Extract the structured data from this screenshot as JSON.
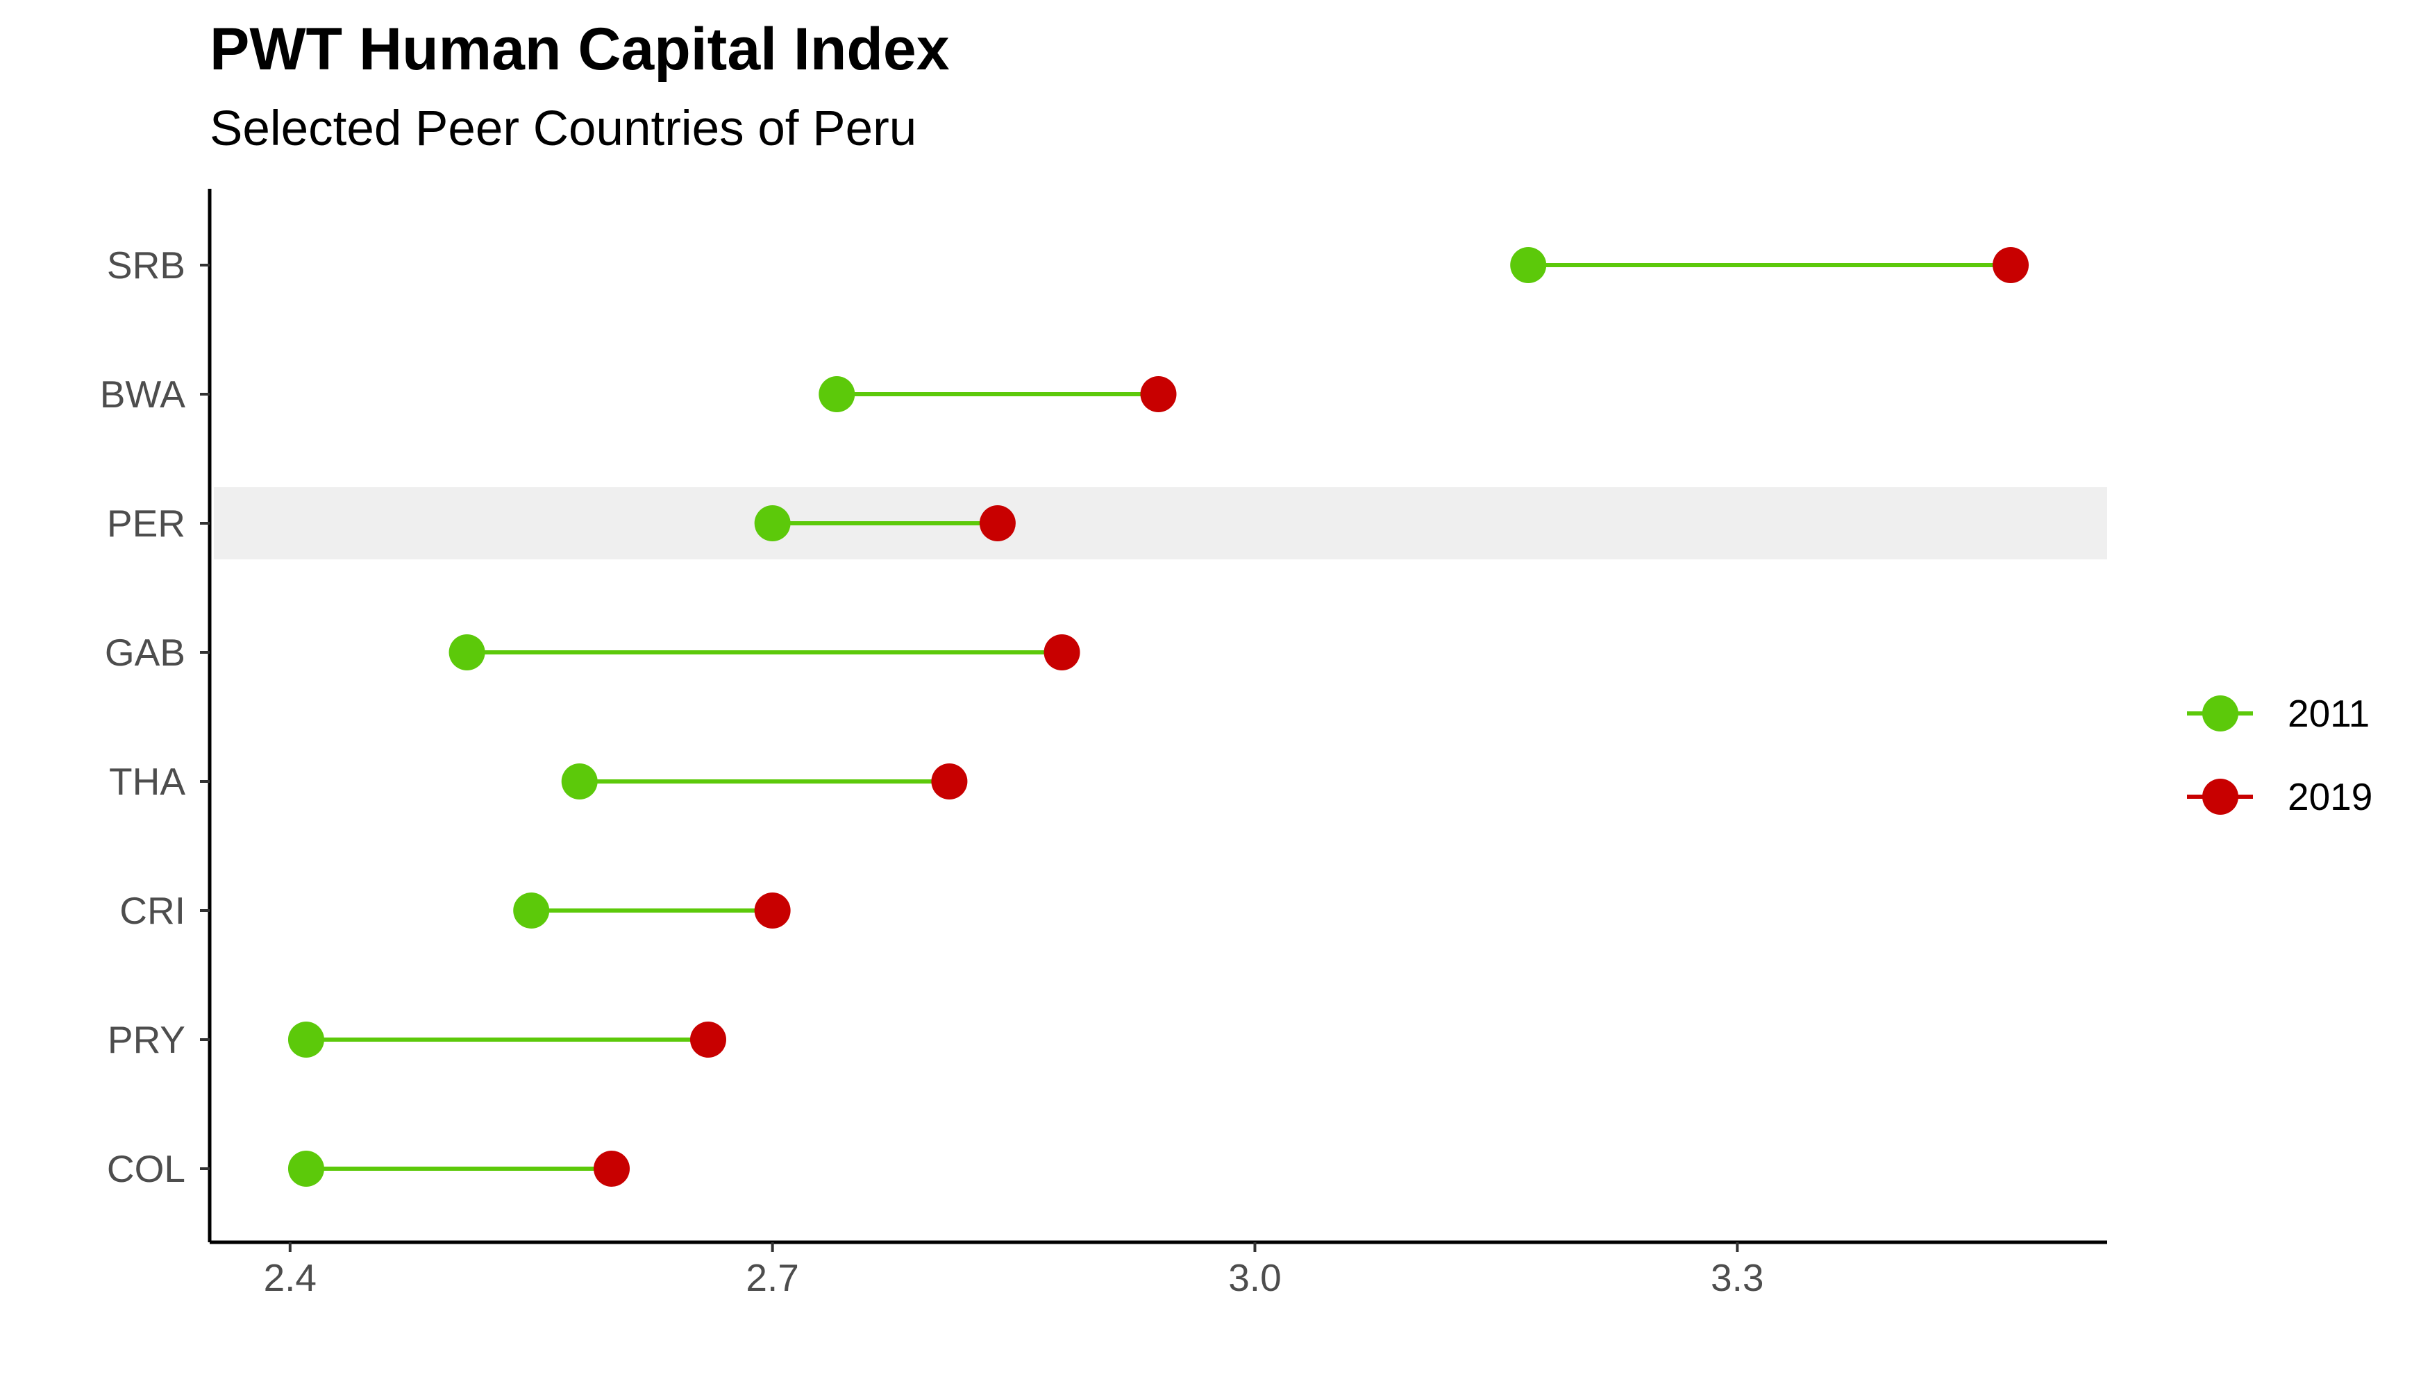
{
  "chart_data": {
    "type": "dumbbell",
    "title": "PWT Human Capital Index",
    "subtitle": "Selected Peer Countries of Peru",
    "xlabel": "",
    "ylabel": "",
    "xlim": [
      2.35,
      3.53
    ],
    "xticks": [
      2.4,
      2.7,
      3.0,
      3.3
    ],
    "xtick_labels": [
      "2.4",
      "2.7",
      "3.0",
      "3.3"
    ],
    "categories": [
      "SRB",
      "BWA",
      "PER",
      "GAB",
      "THA",
      "CRI",
      "PRY",
      "COL"
    ],
    "highlight_category": "PER",
    "grid": false,
    "legend_position": "right",
    "series": [
      {
        "name": "2011",
        "color": "#5cc90a",
        "values": [
          3.17,
          2.74,
          2.7,
          2.51,
          2.58,
          2.55,
          2.41,
          2.41
        ]
      },
      {
        "name": "2019",
        "color": "#c80000",
        "values": [
          3.47,
          2.94,
          2.84,
          2.88,
          2.81,
          2.7,
          2.66,
          2.6
        ]
      }
    ],
    "connector_color": "#5cc90a",
    "highlight_color": "#efefef"
  }
}
